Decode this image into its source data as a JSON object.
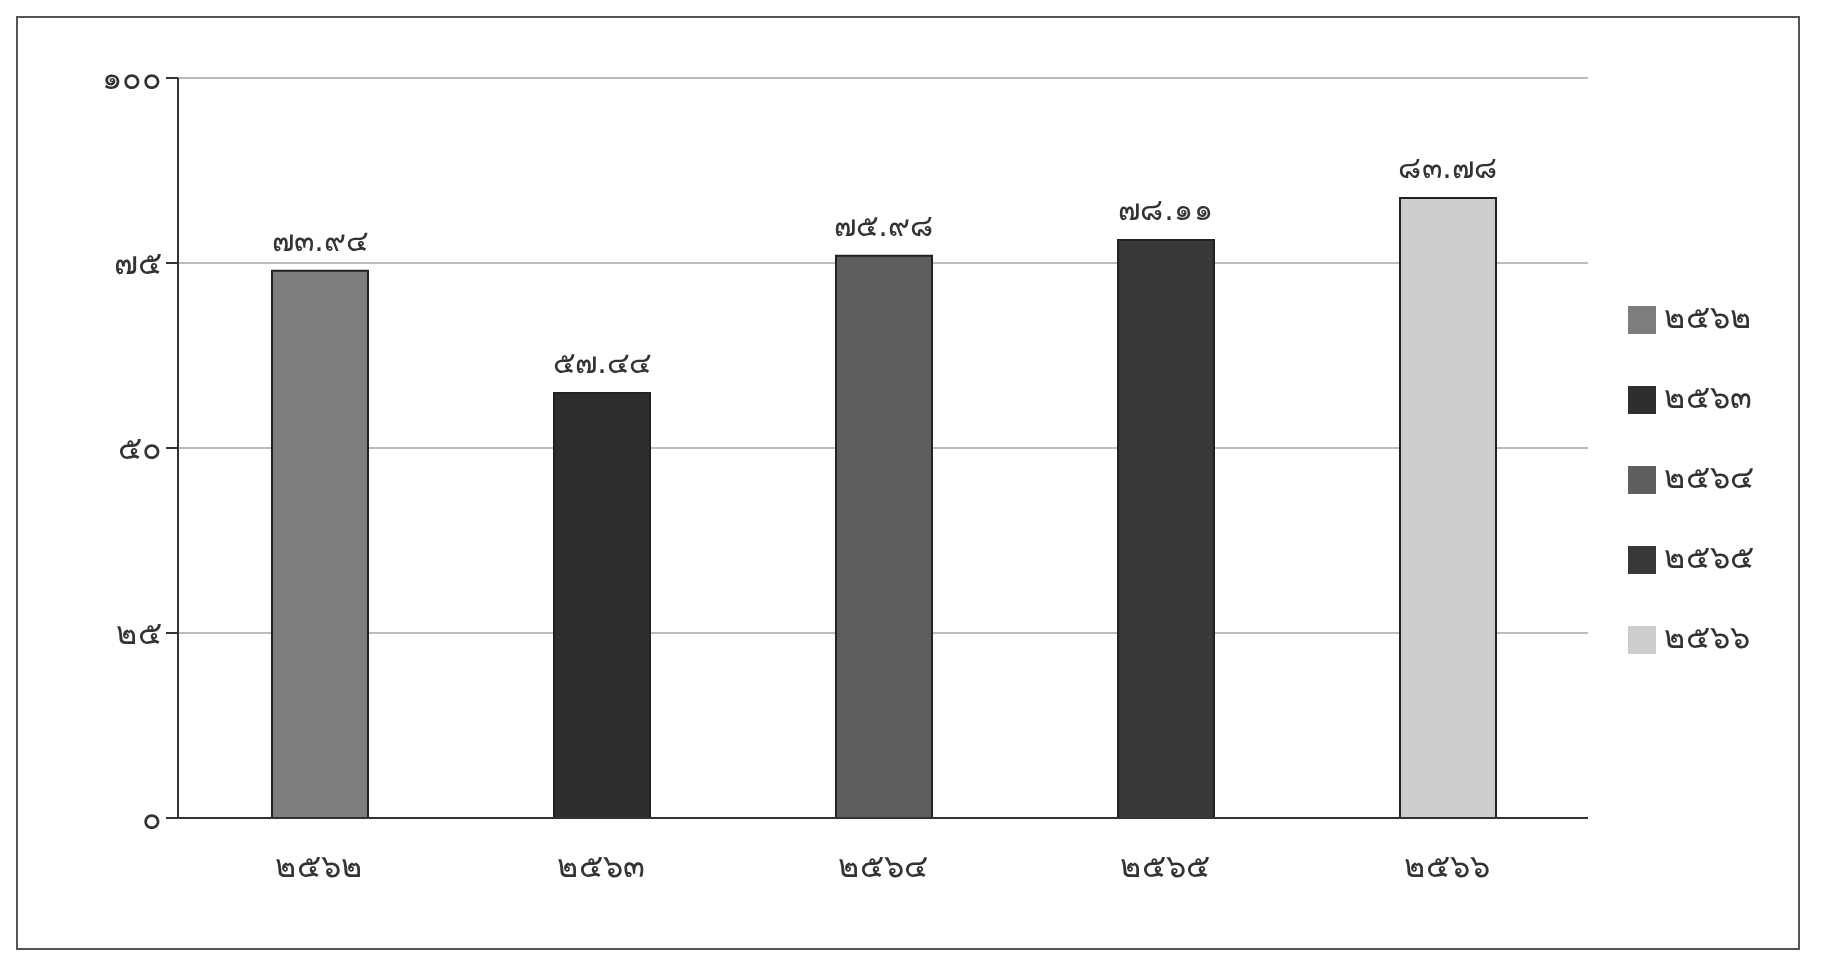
{
  "chart_data": {
    "type": "bar",
    "categories": [
      "๒๕๖๒",
      "๒๕๖๓",
      "๒๕๖๔",
      "๒๕๖๕",
      "๒๕๖๖"
    ],
    "stacked": true,
    "series": [
      {
        "name": "๒๕๖๒",
        "color": "#7d7d7d",
        "values": [
          73.94,
          null,
          null,
          null,
          null
        ],
        "value_labels": [
          "๗๓.๙๔",
          null,
          null,
          null,
          null
        ]
      },
      {
        "name": "๒๕๖๓",
        "color": "#2e2e2e",
        "values": [
          null,
          57.44,
          null,
          null,
          null
        ],
        "value_labels": [
          null,
          "๕๗.๔๔",
          null,
          null,
          null
        ]
      },
      {
        "name": "๒๕๖๔",
        "color": "#5e5e5e",
        "values": [
          null,
          null,
          75.98,
          null,
          null
        ],
        "value_labels": [
          null,
          null,
          "๗๕.๙๘",
          null,
          null
        ]
      },
      {
        "name": "๒๕๖๕",
        "color": "#383838",
        "values": [
          null,
          null,
          null,
          78.11,
          null
        ],
        "value_labels": [
          null,
          null,
          null,
          "๗๘.๑๑",
          null
        ]
      },
      {
        "name": "๒๕๖๖",
        "color": "#cdcdcd",
        "values": [
          null,
          null,
          null,
          null,
          83.78
        ],
        "value_labels": [
          null,
          null,
          null,
          null,
          "๘๓.๗๘"
        ]
      }
    ],
    "ylim": [
      0,
      100
    ],
    "yticks": [
      {
        "value": 0,
        "label": "๐"
      },
      {
        "value": 25,
        "label": "๒๕"
      },
      {
        "value": 50,
        "label": "๕๐"
      },
      {
        "value": 75,
        "label": "๗๕"
      },
      {
        "value": 100,
        "label": "๑๐๐"
      }
    ],
    "grid": "y",
    "legend": "right"
  }
}
